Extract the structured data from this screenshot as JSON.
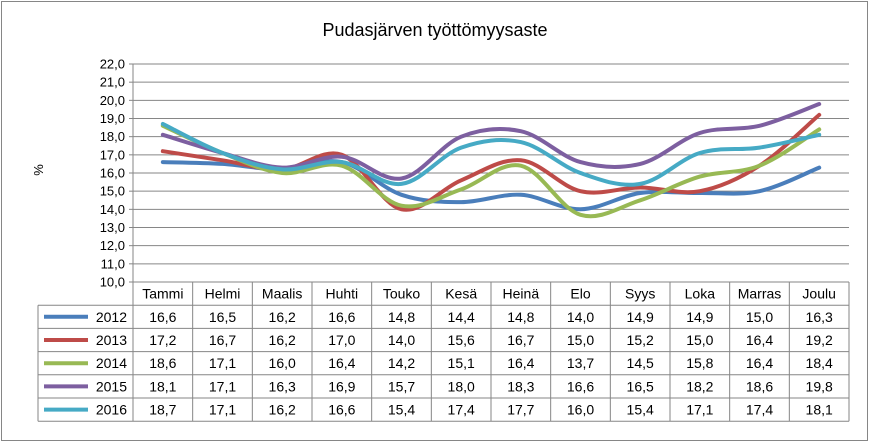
{
  "chart_data": {
    "type": "line",
    "title": "Pudasjärven  työttömyysaste",
    "ylabel": "%",
    "xlabel": "",
    "ylim": [
      10,
      22
    ],
    "ytick_step": 1,
    "ytick_labels": [
      "10,0",
      "11,0",
      "12,0",
      "13,0",
      "14,0",
      "15,0",
      "16,0",
      "17,0",
      "18,0",
      "19,0",
      "20,0",
      "21,0",
      "22,0"
    ],
    "grid": true,
    "legend_placement": "data-table-left",
    "smooth": true,
    "categories": [
      "Tammi",
      "Helmi",
      "Maalis",
      "Huhti",
      "Touko",
      "Kesä",
      "Heinä",
      "Elo",
      "Syys",
      "Loka",
      "Marras",
      "Joulu"
    ],
    "series": [
      {
        "name": "2012",
        "color": "#4A7EBB",
        "values": [
          16.6,
          16.5,
          16.2,
          16.6,
          14.8,
          14.4,
          14.8,
          14.0,
          14.9,
          14.9,
          15.0,
          16.3
        ],
        "labels": [
          "16,6",
          "16,5",
          "16,2",
          "16,6",
          "14,8",
          "14,4",
          "14,8",
          "14,0",
          "14,9",
          "14,9",
          "15,0",
          "16,3"
        ]
      },
      {
        "name": "2013",
        "color": "#BE4B48",
        "values": [
          17.2,
          16.7,
          16.2,
          17.0,
          14.0,
          15.6,
          16.7,
          15.0,
          15.2,
          15.0,
          16.4,
          19.2
        ],
        "labels": [
          "17,2",
          "16,7",
          "16,2",
          "17,0",
          "14,0",
          "15,6",
          "16,7",
          "15,0",
          "15,2",
          "15,0",
          "16,4",
          "19,2"
        ]
      },
      {
        "name": "2014",
        "color": "#98B954",
        "values": [
          18.6,
          17.1,
          16.0,
          16.4,
          14.2,
          15.1,
          16.4,
          13.7,
          14.5,
          15.8,
          16.4,
          18.4
        ],
        "labels": [
          "18,6",
          "17,1",
          "16,0",
          "16,4",
          "14,2",
          "15,1",
          "16,4",
          "13,7",
          "14,5",
          "15,8",
          "16,4",
          "18,4"
        ]
      },
      {
        "name": "2015",
        "color": "#7D5FA0",
        "values": [
          18.1,
          17.1,
          16.3,
          16.9,
          15.7,
          18.0,
          18.3,
          16.6,
          16.5,
          18.2,
          18.6,
          19.8
        ],
        "labels": [
          "18,1",
          "17,1",
          "16,3",
          "16,9",
          "15,7",
          "18,0",
          "18,3",
          "16,6",
          "16,5",
          "18,2",
          "18,6",
          "19,8"
        ]
      },
      {
        "name": "2016",
        "color": "#46AAC5",
        "values": [
          18.7,
          17.1,
          16.2,
          16.6,
          15.4,
          17.4,
          17.7,
          16.0,
          15.4,
          17.1,
          17.4,
          18.1
        ],
        "labels": [
          "18,7",
          "17,1",
          "16,2",
          "16,6",
          "15,4",
          "17,4",
          "17,7",
          "16,0",
          "15,4",
          "17,1",
          "17,4",
          "18,1"
        ]
      }
    ]
  }
}
